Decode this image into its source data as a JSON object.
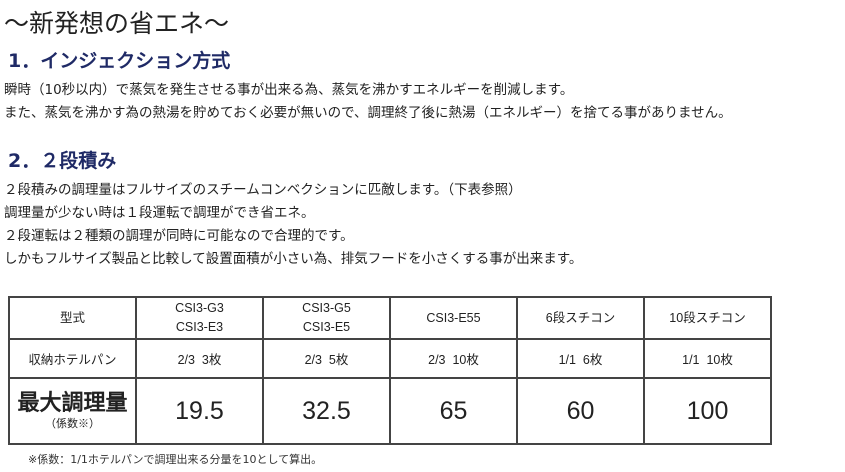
{
  "title": "〜新発想の省エネ〜",
  "section1": {
    "heading": "1．インジェクション方式",
    "lines": [
      "瞬時（10秒以内）で蒸気を発生させる事が出来る為、蒸気を沸かすエネルギーを削減します。",
      "また、蒸気を沸かす為の熱湯を貯めておく必要が無いので、調理終了後に熱湯（エネルギー）を捨てる事がありません。"
    ]
  },
  "section2": {
    "heading": "2．２段積み",
    "lines": [
      "２段積みの調理量はフルサイズのスチームコンベクションに匹敵します。（下表参照）",
      "調理量が少ない時は１段運転で調理ができ省エネ。",
      "２段運転は２種類の調理が同時に可能なので合理的です。",
      "しかもフルサイズ製品と比較して設置面積が小さい為、排気フードを小さくする事が出来ます。"
    ]
  },
  "table": {
    "header_label": "型式",
    "models": [
      [
        "CSI3-G3",
        "CSI3-E3"
      ],
      [
        "CSI3-G5",
        "CSI3-E5"
      ],
      [
        "CSI3-E55"
      ],
      [
        "6段スチコン"
      ],
      [
        "10段スチコン"
      ]
    ],
    "pan_label": "収納ホテルパン",
    "pans": [
      "2/3  3枚",
      "2/3  5枚",
      "2/3  10枚",
      "1/1  6枚",
      "1/1  10枚"
    ],
    "capacity_label": "最大調理量",
    "capacity_sublabel": "（係数※）",
    "capacity": [
      "19.5",
      "32.5",
      "65",
      "60",
      "100"
    ]
  },
  "footnote": "※係数：1/1ホテルパンで調理出来る分量を10として算出。",
  "colors": {
    "heading": "#1f2a66",
    "border": "#444444"
  }
}
